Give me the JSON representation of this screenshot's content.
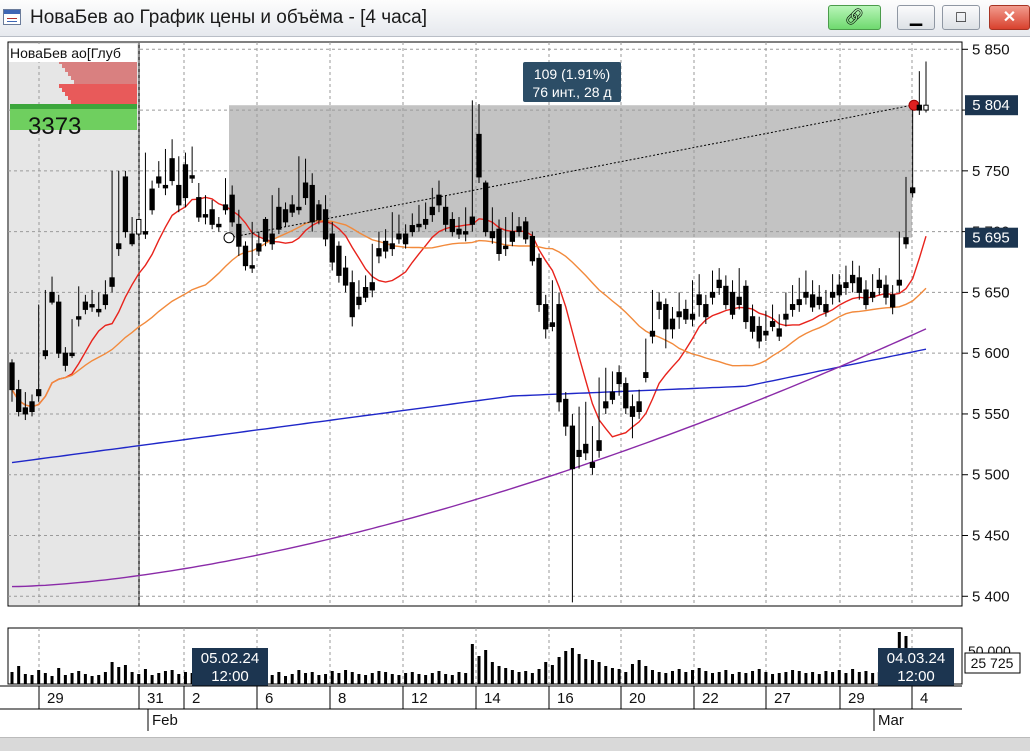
{
  "window": {
    "title": "НоваБев ао График цены и объёма - [4 часа]",
    "buttons": {
      "link": "link-icon",
      "minimize": "minimize-icon",
      "maximize": "maximize-icon",
      "close": "close-icon"
    }
  },
  "chart_data": {
    "type": "candlestick",
    "title": "",
    "instrument_label": "НоваБев ао[Глуб",
    "depth_volume": "3373",
    "x_tick_labels": [
      "29",
      "31",
      "2",
      "6",
      "8",
      "12",
      "14",
      "16",
      "20",
      "22",
      "27",
      "29",
      "4"
    ],
    "x_month_labels": [
      "Feb",
      "Mar"
    ],
    "y_tick_labels": [
      "5 850",
      "5 800",
      "5 750",
      "5 700",
      "5 650",
      "5 600",
      "5 550",
      "5 500",
      "5 450",
      "5 400"
    ],
    "price_ylim": [
      5392,
      5856
    ],
    "y_ticks": [
      5850,
      5800,
      5750,
      5700,
      5650,
      5600,
      5550,
      5500,
      5450,
      5400
    ],
    "last_price_label": "5 804",
    "last_price": 5804,
    "level_label": "5 695",
    "level_price": 5695,
    "measure_box": {
      "line1": "109 (1.91%)",
      "line2": "76 инт., 28 д",
      "price_from": 5695,
      "price_to": 5804,
      "x_from": "05.02.24 12:00",
      "x_to": "04.03.24 12:00"
    },
    "crosshair_labels": [
      "05.02.24\n12:00",
      "04.03.24\n12:00"
    ],
    "crosshair_label_a": {
      "line1": "05.02.24",
      "line2": "12:00"
    },
    "crosshair_label_b": {
      "line1": "04.03.24",
      "line2": "12:00"
    },
    "volume_tick_label": "50 000",
    "volume_last_label": "25 725",
    "colors": {
      "candle_up": "#ffffff",
      "candle_down": "#000000",
      "ma_fast": "#e8231c",
      "ma_mid": "#f28a3c",
      "ma_slow": "#1f27c8",
      "ma_longest": "#8a2ba8",
      "box": "#bdbdbd",
      "grid": "#9a9a9a"
    },
    "candles": [
      [
        5592,
        5595,
        5570,
        5560
      ],
      [
        5570,
        5578,
        5552,
        5548
      ],
      [
        5555,
        5568,
        5550,
        5545
      ],
      [
        5560,
        5566,
        5552,
        5548
      ],
      [
        5570,
        5640,
        5565,
        5560
      ],
      [
        5602,
        5652,
        5598,
        5595
      ],
      [
        5650,
        5663,
        5642,
        5640
      ],
      [
        5642,
        5648,
        5600,
        5596
      ],
      [
        5600,
        5605,
        5590,
        5585
      ],
      [
        5600,
        5628,
        5598,
        5596
      ],
      [
        5630,
        5655,
        5628,
        5622
      ],
      [
        5642,
        5648,
        5636,
        5632
      ],
      [
        5640,
        5652,
        5638,
        5634
      ],
      [
        5636,
        5650,
        5634,
        5630
      ],
      [
        5648,
        5660,
        5640,
        5636
      ],
      [
        5662,
        5750,
        5655,
        5650
      ],
      [
        5690,
        5750,
        5686,
        5680
      ],
      [
        5745,
        5750,
        5700,
        5695
      ],
      [
        5698,
        5712,
        5690,
        5688
      ],
      [
        5698,
        5700,
        5710,
        5696
      ],
      [
        5700,
        5765,
        5698,
        5694
      ],
      [
        5735,
        5742,
        5718,
        5714
      ],
      [
        5745,
        5758,
        5740,
        5736
      ],
      [
        5738,
        5768,
        5736,
        5730
      ],
      [
        5760,
        5776,
        5742,
        5738
      ],
      [
        5738,
        5762,
        5722,
        5716
      ],
      [
        5755,
        5765,
        5728,
        5720
      ],
      [
        5746,
        5770,
        5744,
        5740
      ],
      [
        5728,
        5740,
        5712,
        5708
      ],
      [
        5714,
        5730,
        5712,
        5706
      ],
      [
        5718,
        5726,
        5706,
        5702
      ],
      [
        5706,
        5712,
        5704,
        5700
      ],
      [
        5722,
        5744,
        5718,
        5714
      ],
      [
        5730,
        5738,
        5708,
        5704
      ],
      [
        5706,
        5718,
        5688,
        5680
      ],
      [
        5688,
        5692,
        5672,
        5668
      ],
      [
        5672,
        5708,
        5670,
        5666
      ],
      [
        5690,
        5700,
        5684,
        5680
      ],
      [
        5710,
        5712,
        5692,
        5688
      ],
      [
        5698,
        5730,
        5690,
        5685
      ],
      [
        5720,
        5736,
        5702,
        5698
      ],
      [
        5718,
        5724,
        5708,
        5704
      ],
      [
        5722,
        5730,
        5716,
        5712
      ],
      [
        5720,
        5762,
        5718,
        5714
      ],
      [
        5740,
        5760,
        5728,
        5722
      ],
      [
        5738,
        5748,
        5708,
        5700
      ],
      [
        5722,
        5726,
        5710,
        5706
      ],
      [
        5718,
        5730,
        5694,
        5688
      ],
      [
        5698,
        5708,
        5675,
        5668
      ],
      [
        5688,
        5692,
        5664,
        5658
      ],
      [
        5670,
        5680,
        5656,
        5650
      ],
      [
        5658,
        5668,
        5630,
        5622
      ],
      [
        5646,
        5660,
        5640,
        5636
      ],
      [
        5654,
        5664,
        5646,
        5642
      ],
      [
        5658,
        5690,
        5652,
        5646
      ],
      [
        5686,
        5700,
        5680,
        5674
      ],
      [
        5692,
        5702,
        5684,
        5678
      ],
      [
        5690,
        5716,
        5686,
        5680
      ],
      [
        5698,
        5714,
        5694,
        5690
      ],
      [
        5698,
        5706,
        5690,
        5686
      ],
      [
        5705,
        5715,
        5700,
        5696
      ],
      [
        5706,
        5722,
        5704,
        5700
      ],
      [
        5710,
        5724,
        5706,
        5702
      ],
      [
        5720,
        5736,
        5714,
        5708
      ],
      [
        5730,
        5742,
        5722,
        5716
      ],
      [
        5720,
        5730,
        5706,
        5700
      ],
      [
        5710,
        5716,
        5700,
        5696
      ],
      [
        5702,
        5712,
        5698,
        5694
      ],
      [
        5700,
        5720,
        5698,
        5692
      ],
      [
        5712,
        5808,
        5706,
        5700
      ],
      [
        5780,
        5805,
        5745,
        5740
      ],
      [
        5740,
        5742,
        5700,
        5696
      ],
      [
        5700,
        5720,
        5695,
        5690
      ],
      [
        5702,
        5710,
        5682,
        5676
      ],
      [
        5688,
        5712,
        5686,
        5680
      ],
      [
        5700,
        5716,
        5692,
        5688
      ],
      [
        5704,
        5712,
        5700,
        5696
      ],
      [
        5708,
        5712,
        5694,
        5690
      ],
      [
        5696,
        5700,
        5676,
        5672
      ],
      [
        5678,
        5682,
        5640,
        5634
      ],
      [
        5640,
        5648,
        5620,
        5612
      ],
      [
        5625,
        5660,
        5622,
        5618
      ],
      [
        5640,
        5650,
        5560,
        5552
      ],
      [
        5562,
        5568,
        5540,
        5532
      ],
      [
        5540,
        5550,
        5505,
        5395
      ],
      [
        5520,
        5556,
        5515,
        5505
      ],
      [
        5525,
        5560,
        5518,
        5512
      ],
      [
        5510,
        5540,
        5506,
        5500
      ],
      [
        5528,
        5580,
        5520,
        5514
      ],
      [
        5560,
        5588,
        5555,
        5550
      ],
      [
        5568,
        5585,
        5562,
        5558
      ],
      [
        5584,
        5590,
        5575,
        5565
      ],
      [
        5575,
        5580,
        5555,
        5550
      ],
      [
        5556,
        5566,
        5548,
        5530
      ],
      [
        5560,
        5570,
        5552,
        5546
      ],
      [
        5584,
        5612,
        5580,
        5576
      ],
      [
        5618,
        5652,
        5614,
        5608
      ],
      [
        5642,
        5650,
        5636,
        5628
      ],
      [
        5640,
        5645,
        5620,
        5604
      ],
      [
        5628,
        5638,
        5620,
        5612
      ],
      [
        5634,
        5650,
        5630,
        5620
      ],
      [
        5636,
        5644,
        5628,
        5624
      ],
      [
        5632,
        5660,
        5628,
        5622
      ],
      [
        5648,
        5665,
        5640,
        5630
      ],
      [
        5640,
        5648,
        5630,
        5624
      ],
      [
        5650,
        5668,
        5646,
        5640
      ],
      [
        5660,
        5670,
        5654,
        5648
      ],
      [
        5655,
        5664,
        5640,
        5636
      ],
      [
        5650,
        5660,
        5632,
        5628
      ],
      [
        5646,
        5670,
        5640,
        5636
      ],
      [
        5655,
        5660,
        5626,
        5620
      ],
      [
        5630,
        5640,
        5618,
        5612
      ],
      [
        5622,
        5630,
        5610,
        5604
      ],
      [
        5618,
        5635,
        5615,
        5610
      ],
      [
        5626,
        5640,
        5622,
        5618
      ],
      [
        5620,
        5632,
        5614,
        5610
      ],
      [
        5632,
        5650,
        5628,
        5622
      ],
      [
        5640,
        5656,
        5636,
        5630
      ],
      [
        5644,
        5662,
        5640,
        5634
      ],
      [
        5650,
        5668,
        5646,
        5640
      ],
      [
        5648,
        5660,
        5638,
        5634
      ],
      [
        5646,
        5656,
        5640,
        5636
      ],
      [
        5640,
        5652,
        5634,
        5630
      ],
      [
        5650,
        5665,
        5646,
        5640
      ],
      [
        5656,
        5665,
        5648,
        5642
      ],
      [
        5658,
        5672,
        5654,
        5648
      ],
      [
        5664,
        5676,
        5658,
        5650
      ],
      [
        5662,
        5672,
        5650,
        5644
      ],
      [
        5652,
        5660,
        5640,
        5636
      ],
      [
        5650,
        5665,
        5646,
        5642
      ],
      [
        5660,
        5670,
        5654,
        5648
      ],
      [
        5656,
        5664,
        5646,
        5640
      ],
      [
        5648,
        5656,
        5638,
        5632
      ],
      [
        5660,
        5700,
        5656,
        5650
      ],
      [
        5695,
        5745,
        5690,
        5686
      ],
      [
        5736,
        5800,
        5732,
        5728
      ],
      [
        5804,
        5832,
        5800,
        5796
      ],
      [
        5800,
        5840,
        5804,
        5798
      ]
    ],
    "volumes": [
      12,
      18,
      10,
      9,
      14,
      11,
      8,
      16,
      9,
      11,
      13,
      10,
      8,
      9,
      12,
      22,
      17,
      19,
      12,
      10,
      15,
      9,
      11,
      13,
      14,
      10,
      12,
      11,
      9,
      10,
      8,
      7,
      12,
      11,
      13,
      9,
      8,
      10,
      11,
      9,
      12,
      8,
      10,
      14,
      11,
      12,
      9,
      10,
      13,
      11,
      14,
      12,
      10,
      9,
      11,
      13,
      12,
      10,
      9,
      11,
      12,
      10,
      9,
      11,
      13,
      10,
      9,
      12,
      11,
      40,
      28,
      34,
      22,
      18,
      16,
      14,
      12,
      13,
      11,
      15,
      22,
      19,
      27,
      33,
      36,
      30,
      25,
      24,
      22,
      18,
      16,
      15,
      12,
      20,
      24,
      18,
      14,
      12,
      11,
      13,
      15,
      12,
      14,
      16,
      13,
      11,
      12,
      14,
      10,
      12,
      11,
      13,
      15,
      12,
      10,
      11,
      12,
      14,
      13,
      11,
      12,
      10,
      13,
      12,
      14,
      11,
      15,
      12,
      13,
      11,
      12,
      26,
      20,
      52,
      48
    ]
  }
}
